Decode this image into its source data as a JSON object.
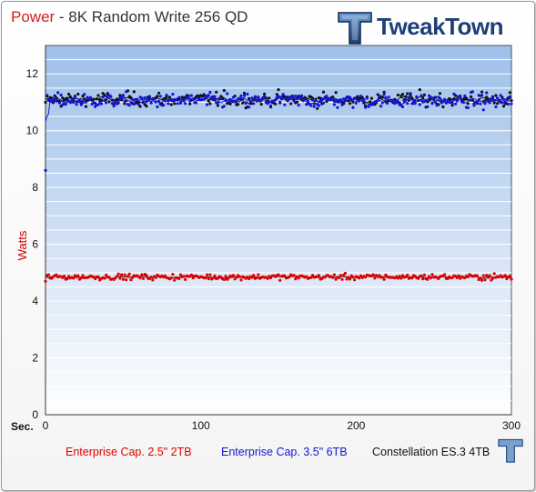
{
  "title": {
    "highlight": "Power",
    "rest": " - 8K Random Write 256 QD"
  },
  "brand": {
    "name": "TweakTown",
    "icon": "tweaktown-logo-icon",
    "color": "#1c3f78"
  },
  "chart_data": {
    "type": "scatter",
    "title": "Power - 8K Random Write 256 QD",
    "xlabel": "Sec.",
    "ylabel": "Watts",
    "xlim": [
      0,
      300
    ],
    "ylim": [
      0,
      13
    ],
    "xticks": [
      0,
      100,
      200,
      300
    ],
    "yticks": [
      0,
      2,
      4,
      6,
      8,
      10,
      12
    ],
    "grid": true,
    "legend_position": "bottom",
    "series": [
      {
        "name": "Enterprise Cap. 2.5\" 2TB",
        "color": "#e00000",
        "line_color": "#111111",
        "mean": 4.85,
        "spread": 0.12,
        "start_value": 4.7,
        "min": 4.45,
        "max": 5.25
      },
      {
        "name": "Enterprise Cap. 3.5\" 6TB",
        "color": "#1515d8",
        "line_color": "#2020c8",
        "mean": 11.05,
        "spread": 0.3,
        "start_value": 8.6,
        "min": 9.95,
        "max": 11.95
      },
      {
        "name": "Constellation ES.3 4TB",
        "color": "#111111",
        "line_color": "#111111",
        "mean": 11.1,
        "spread": 0.3,
        "start_value": 11.0,
        "min": 10.1,
        "max": 12.2
      }
    ]
  }
}
